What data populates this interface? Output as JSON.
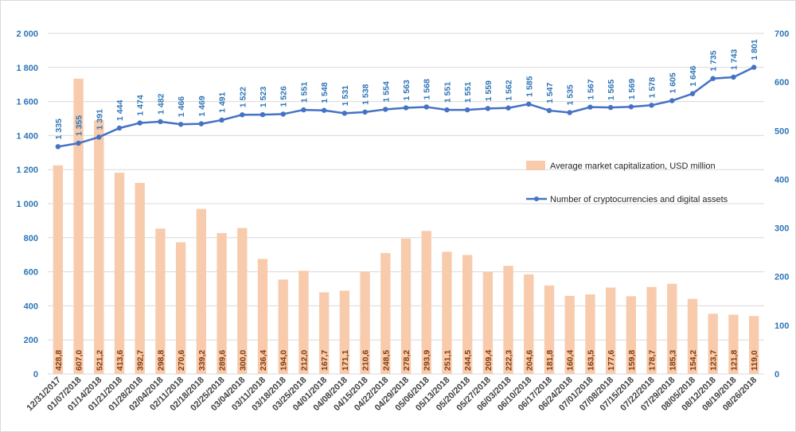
{
  "chart_data": {
    "type": "bar+line",
    "categories": [
      "12/31/2017",
      "01/07/2018",
      "01/14/2018",
      "01/21/2018",
      "01/28/2018",
      "02/04/2018",
      "02/11/2018",
      "02/18/2018",
      "02/25/2018",
      "03/04/2018",
      "03/11/2018",
      "03/18/2018",
      "03/25/2018",
      "04/01/2018",
      "04/08/2018",
      "04/15/2018",
      "04/22/2018",
      "04/29/2018",
      "05/06/2018",
      "05/13/2018",
      "05/20/2018",
      "05/27/2018",
      "06/03/2018",
      "06/10/2018",
      "06/17/2018",
      "06/24/2018",
      "07/01/2018",
      "07/08/2018",
      "07/15/2018",
      "07/22/2018",
      "07/29/2018",
      "08/05/2018",
      "08/12/2018",
      "08/19/2018",
      "08/26/2018"
    ],
    "series": [
      {
        "name": "Average market capitalization, USD million",
        "type": "bar",
        "axis": "right",
        "color": "#f8cbad",
        "values": [
          428.8,
          607.0,
          521.2,
          413.6,
          392.7,
          298.8,
          270.6,
          339.2,
          289.6,
          300.0,
          236.4,
          194.0,
          212.0,
          167.7,
          171.1,
          210.6,
          248.5,
          278.2,
          293.9,
          251.1,
          244.5,
          209.4,
          222.3,
          204.6,
          181.8,
          160.4,
          163.5,
          177.6,
          159.8,
          178.7,
          185.3,
          154.2,
          123.7,
          121.8,
          119.0
        ],
        "labels": [
          "428,8",
          "607,0",
          "521,2",
          "413,6",
          "392,7",
          "298,8",
          "270,6",
          "339,2",
          "289,6",
          "300,0",
          "236,4",
          "194,0",
          "212,0",
          "167,7",
          "171,1",
          "210,6",
          "248,5",
          "278,2",
          "293,9",
          "251,1",
          "244,5",
          "209,4",
          "222,3",
          "204,6",
          "181,8",
          "160,4",
          "163,5",
          "177,6",
          "159,8",
          "178,7",
          "185,3",
          "154,2",
          "123,7",
          "121,8",
          "119,0"
        ]
      },
      {
        "name": "Number of cryptocurrencies and digital assets",
        "type": "line",
        "axis": "left",
        "color": "#4472c4",
        "values": [
          1335,
          1355,
          1391,
          1444,
          1474,
          1482,
          1466,
          1469,
          1491,
          1522,
          1523,
          1526,
          1551,
          1548,
          1531,
          1538,
          1554,
          1563,
          1568,
          1551,
          1551,
          1559,
          1562,
          1585,
          1547,
          1535,
          1567,
          1565,
          1569,
          1578,
          1605,
          1646,
          1735,
          1743,
          1801
        ],
        "labels": [
          "1 335",
          "1 355",
          "1 391",
          "1 444",
          "1 474",
          "1 482",
          "1 466",
          "1 469",
          "1 491",
          "1 522",
          "1 523",
          "1 526",
          "1 551",
          "1 548",
          "1 531",
          "1 538",
          "1 554",
          "1 563",
          "1 568",
          "1 551",
          "1 551",
          "1 559",
          "1 562",
          "1 585",
          "1 547",
          "1 535",
          "1 567",
          "1 565",
          "1 569",
          "1 578",
          "1 605",
          "1 646",
          "1 735",
          "1 743",
          "1 801"
        ]
      }
    ],
    "left_axis": {
      "ylim": [
        0,
        2000
      ],
      "ticks": [
        0,
        200,
        400,
        600,
        800,
        1000,
        1200,
        1400,
        1600,
        1800,
        2000
      ],
      "tick_labels": [
        "0",
        "200",
        "400",
        "600",
        "800",
        "1 000",
        "1 200",
        "1 400",
        "1 600",
        "1 800",
        "2 000"
      ]
    },
    "right_axis": {
      "ylim": [
        0,
        700
      ],
      "ticks": [
        0,
        100,
        200,
        300,
        400,
        500,
        600,
        700
      ],
      "tick_labels": [
        "0",
        "100",
        "200",
        "300",
        "400",
        "500",
        "600",
        "700"
      ]
    },
    "grid": true,
    "legend_position": "right-middle"
  }
}
